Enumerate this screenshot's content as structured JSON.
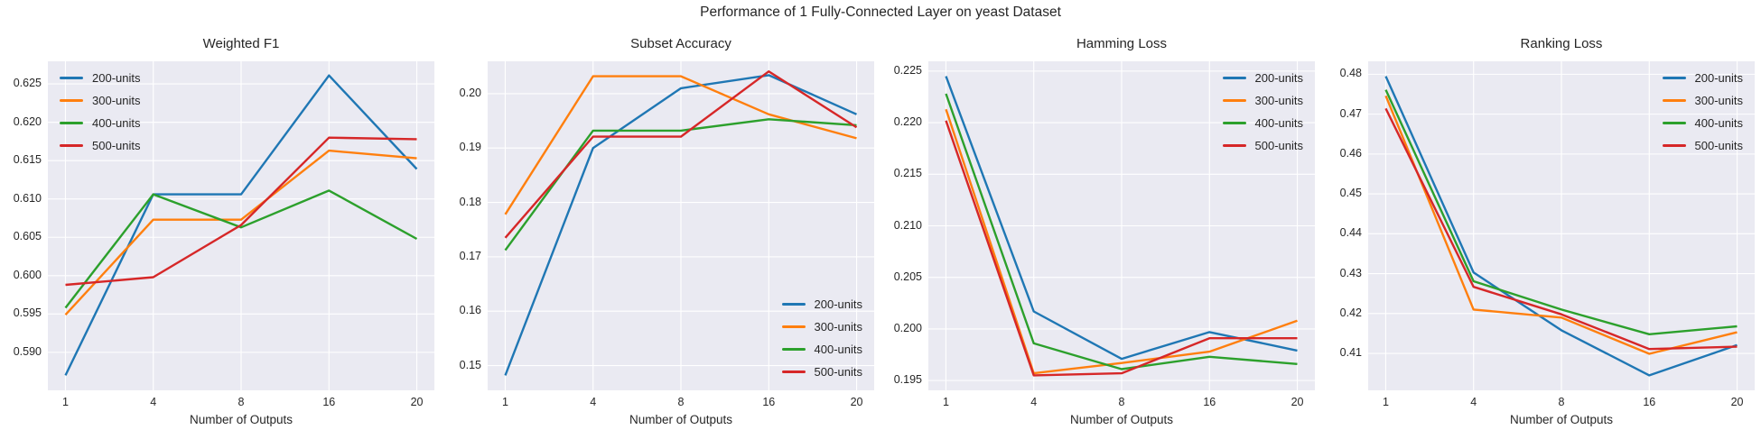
{
  "figure": {
    "title": "Performance of 1 Fully-Connected Layer on yeast Dataset",
    "xlabel": "Number of Outputs",
    "x_tick_labels": [
      "1",
      "4",
      "8",
      "16",
      "20"
    ],
    "series": [
      {
        "name": "200-units",
        "color": "#1f77b4"
      },
      {
        "name": "300-units",
        "color": "#ff7f0e"
      },
      {
        "name": "400-units",
        "color": "#2ca02c"
      },
      {
        "name": "500-units",
        "color": "#d62728"
      }
    ],
    "plot_background_color": "#eaeaf2",
    "grid_color": "#ffffff",
    "text_color": "#262626",
    "grid": true
  },
  "chart_data": [
    {
      "type": "line",
      "title": "Weighted F1",
      "xlabel": "Number of Outputs",
      "x_categories": [
        1,
        4,
        8,
        16,
        20
      ],
      "ylim": [
        0.58505,
        0.62795
      ],
      "yticks": [
        0.59,
        0.595,
        0.6,
        0.605,
        0.61,
        0.615,
        0.62,
        0.625
      ],
      "ytick_labels": [
        "0.590",
        "0.595",
        "0.600",
        "0.605",
        "0.610",
        "0.615",
        "0.620",
        "0.625"
      ],
      "legend_position": "upper-left",
      "series": [
        {
          "name": "200-units",
          "values": [
            0.587,
            0.6106,
            0.6106,
            0.6261,
            0.6139
          ]
        },
        {
          "name": "300-units",
          "values": [
            0.5949,
            0.6073,
            0.6073,
            0.6163,
            0.6153
          ]
        },
        {
          "name": "400-units",
          "values": [
            0.5958,
            0.6106,
            0.6063,
            0.6111,
            0.6048
          ]
        },
        {
          "name": "500-units",
          "values": [
            0.5988,
            0.5998,
            0.6066,
            0.618,
            0.6178
          ]
        }
      ]
    },
    {
      "type": "line",
      "title": "Subset Accuracy",
      "xlabel": "Number of Outputs",
      "x_categories": [
        1,
        4,
        8,
        16,
        20
      ],
      "ylim": [
        0.14545,
        0.20595
      ],
      "yticks": [
        0.15,
        0.16,
        0.17,
        0.18,
        0.19,
        0.2
      ],
      "ytick_labels": [
        "0.15",
        "0.16",
        "0.17",
        "0.18",
        "0.19",
        "0.20"
      ],
      "legend_position": "lower-right",
      "series": [
        {
          "name": "200-units",
          "values": [
            0.1482,
            0.19,
            0.201,
            0.2034,
            0.1962
          ]
        },
        {
          "name": "300-units",
          "values": [
            0.1778,
            0.2032,
            0.2032,
            0.1962,
            0.1918
          ]
        },
        {
          "name": "400-units",
          "values": [
            0.1712,
            0.1932,
            0.1932,
            0.1953,
            0.1942
          ]
        },
        {
          "name": "500-units",
          "values": [
            0.1735,
            0.1921,
            0.1921,
            0.2041,
            0.1938
          ]
        }
      ]
    },
    {
      "type": "line",
      "title": "Hamming Loss",
      "xlabel": "Number of Outputs",
      "x_categories": [
        1,
        4,
        8,
        16,
        20
      ],
      "ylim": [
        0.19405,
        0.22595
      ],
      "yticks": [
        0.195,
        0.2,
        0.205,
        0.21,
        0.215,
        0.22,
        0.225
      ],
      "ytick_labels": [
        "0.195",
        "0.200",
        "0.205",
        "0.210",
        "0.215",
        "0.220",
        "0.225"
      ],
      "legend_position": "upper-right",
      "series": [
        {
          "name": "200-units",
          "values": [
            0.2245,
            0.2017,
            0.1971,
            0.1997,
            0.1979
          ]
        },
        {
          "name": "300-units",
          "values": [
            0.2213,
            0.1957,
            0.1967,
            0.1978,
            0.2008
          ]
        },
        {
          "name": "400-units",
          "values": [
            0.2228,
            0.1986,
            0.1961,
            0.1973,
            0.1966
          ]
        },
        {
          "name": "500-units",
          "values": [
            0.2202,
            0.1955,
            0.1957,
            0.1991,
            0.1991
          ]
        }
      ]
    },
    {
      "type": "line",
      "title": "Ranking Loss",
      "xlabel": "Number of Outputs",
      "x_categories": [
        1,
        4,
        8,
        16,
        20
      ],
      "ylim": [
        0.40075,
        0.48325
      ],
      "yticks": [
        0.41,
        0.42,
        0.43,
        0.44,
        0.45,
        0.46,
        0.47,
        0.48
      ],
      "ytick_labels": [
        "0.41",
        "0.42",
        "0.43",
        "0.44",
        "0.45",
        "0.46",
        "0.47",
        "0.48"
      ],
      "legend_position": "upper-right",
      "series": [
        {
          "name": "200-units",
          "values": [
            0.4795,
            0.4303,
            0.4158,
            0.4045,
            0.4121
          ]
        },
        {
          "name": "300-units",
          "values": [
            0.4746,
            0.421,
            0.419,
            0.4099,
            0.4153
          ]
        },
        {
          "name": "400-units",
          "values": [
            0.4761,
            0.4281,
            0.421,
            0.4148,
            0.4168
          ]
        },
        {
          "name": "500-units",
          "values": [
            0.4714,
            0.4267,
            0.4198,
            0.4111,
            0.4117
          ]
        }
      ]
    }
  ]
}
